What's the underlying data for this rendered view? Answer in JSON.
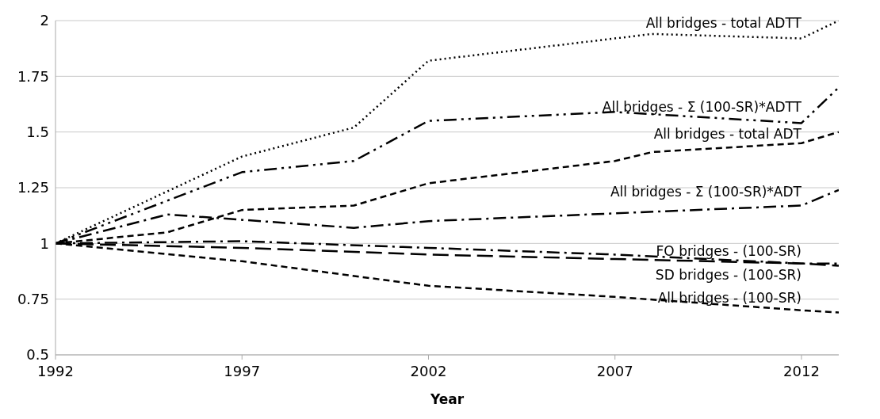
{
  "chart_data": {
    "type": "line",
    "xlabel": "Year",
    "xlim": [
      1992,
      2013
    ],
    "xticks": [
      1992,
      1997,
      2002,
      2007,
      2012
    ],
    "ylim": [
      0.5,
      2
    ],
    "yticks": [
      0.5,
      0.75,
      1,
      1.25,
      1.5,
      1.75,
      2
    ],
    "grid": "y",
    "legend": false,
    "marker": "none",
    "series": [
      {
        "name": "All bridges - total ADTT",
        "color": "#000000",
        "line_style": "dotted",
        "x": [
          1992,
          1997,
          2000,
          2002,
          2008,
          2012,
          2013
        ],
        "values": [
          1,
          1.39,
          1.52,
          1.82,
          1.94,
          1.92,
          2.0
        ]
      },
      {
        "name": "All bridges - Σ (100-SR)*ADTT",
        "color": "#000000",
        "line_style": "dashdotdot",
        "x": [
          1992,
          1997,
          2000,
          2002,
          2007,
          2012,
          2013
        ],
        "values": [
          1,
          1.32,
          1.37,
          1.55,
          1.59,
          1.54,
          1.7
        ]
      },
      {
        "name": "All bridges - total ADT",
        "color": "#000000",
        "line_style": "dashed",
        "x": [
          1992,
          1995,
          1997,
          2000,
          2002,
          2007,
          2008,
          2012,
          2013
        ],
        "values": [
          1,
          1.05,
          1.15,
          1.17,
          1.27,
          1.37,
          1.41,
          1.45,
          1.5
        ]
      },
      {
        "name": "All bridges - Σ (100-SR)*ADT",
        "color": "#000000",
        "line_style": "dashdot",
        "x": [
          1992,
          1995,
          2000,
          2002,
          2012,
          2013
        ],
        "values": [
          1,
          1.13,
          1.07,
          1.1,
          1.17,
          1.24
        ]
      },
      {
        "name": "FO bridges -  (100-SR)",
        "color": "#000000",
        "line_style": "dashdot",
        "x": [
          1992,
          1997,
          2002,
          2007,
          2012,
          2013
        ],
        "values": [
          1,
          1.01,
          0.98,
          0.95,
          0.91,
          0.91
        ]
      },
      {
        "name": "SD bridges -  (100-SR)",
        "color": "#000000",
        "line_style": "longdash",
        "x": [
          1992,
          1997,
          2002,
          2007,
          2012,
          2013
        ],
        "values": [
          1,
          0.98,
          0.95,
          0.93,
          0.91,
          0.9
        ]
      },
      {
        "name": "All bridges -  (100-SR)",
        "color": "#000000",
        "line_style": "dashed",
        "x": [
          1992,
          1997,
          2002,
          2007,
          2012,
          2013
        ],
        "values": [
          1,
          0.92,
          0.81,
          0.76,
          0.7,
          0.69
        ]
      }
    ]
  }
}
